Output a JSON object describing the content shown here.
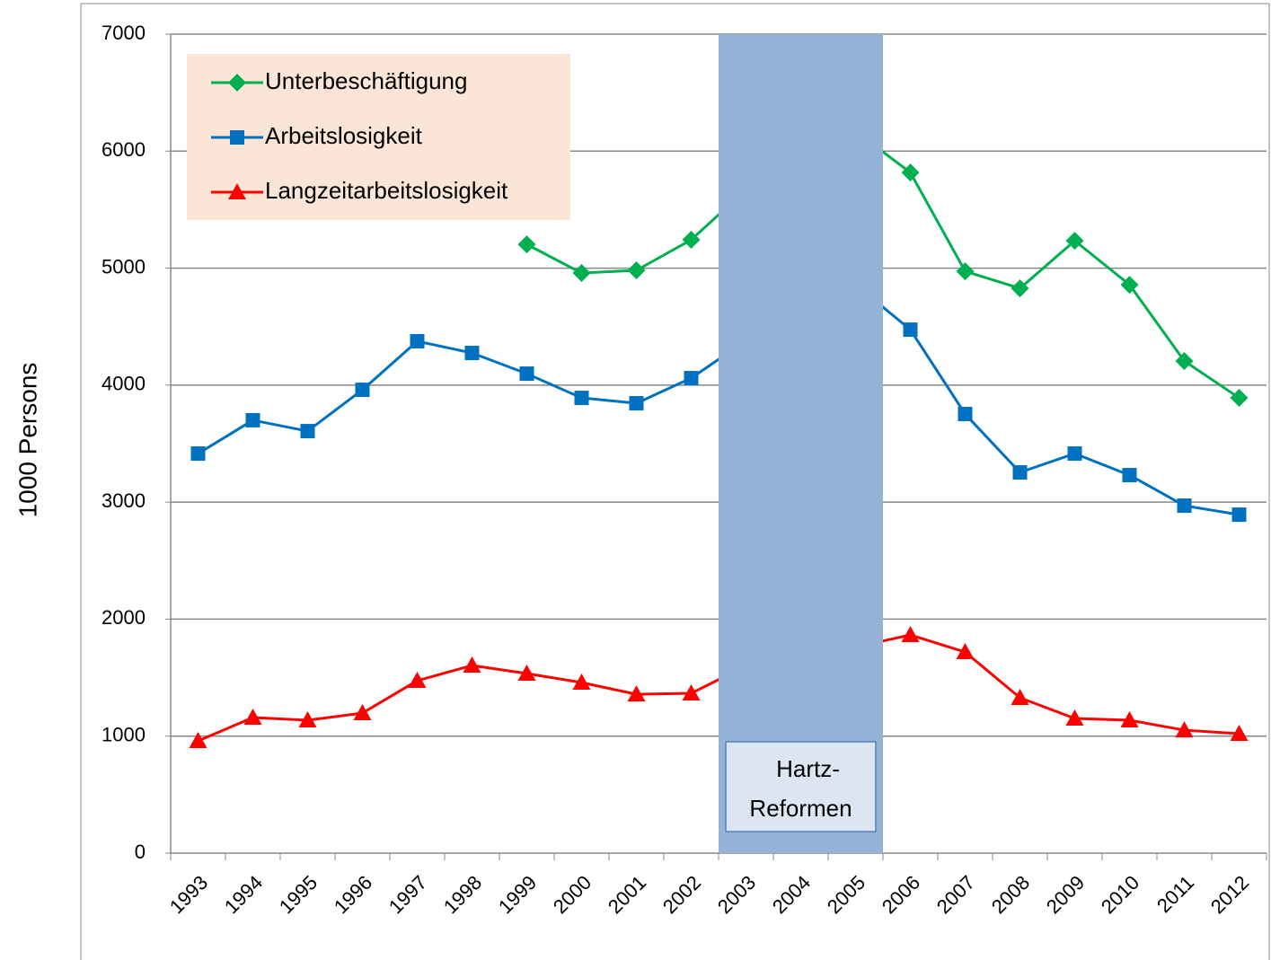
{
  "chart_data": {
    "type": "line",
    "y_label": "1000 Persons",
    "categories": [
      "1993",
      "1994",
      "1995",
      "1996",
      "1997",
      "1998",
      "1999",
      "2000",
      "2001",
      "2002",
      "2003",
      "2004",
      "2005",
      "2006",
      "2007",
      "2008",
      "2009",
      "2010",
      "2011",
      "2012"
    ],
    "series": [
      {
        "name": "Unterbeschäftigung",
        "color": "#00b050",
        "marker": "diamond",
        "values": [
          null,
          null,
          null,
          null,
          null,
          null,
          5203,
          4958,
          4981,
          5242,
          5670,
          5900,
          6170,
          5817,
          4973,
          4827,
          5234,
          4858,
          4206,
          3891
        ]
      },
      {
        "name": "Arbeitslosigkeit",
        "color": "#0070c0",
        "marker": "square",
        "values": [
          3415,
          3700,
          3607,
          3960,
          4375,
          4275,
          4098,
          3891,
          3845,
          4060,
          4380,
          4380,
          4860,
          4474,
          3753,
          3254,
          3415,
          3231,
          2970,
          2893
        ]
      },
      {
        "name": "Langzeitarbeitslosigkeit",
        "color": "#ff0000",
        "marker": "triangle",
        "values": [
          959,
          1159,
          1136,
          1197,
          1474,
          1604,
          1535,
          1458,
          1358,
          1366,
          1600,
          1680,
          1762,
          1865,
          1719,
          1328,
          1151,
          1136,
          1051,
          1021
        ]
      }
    ],
    "ylim": [
      0,
      7000
    ],
    "yticks": [
      0,
      1000,
      2000,
      3000,
      4000,
      5000,
      6000,
      7000
    ],
    "grid": true,
    "legend": "upper-left",
    "highlight": {
      "categories": [
        "2003",
        "2005"
      ],
      "label": [
        "Hartz-",
        "Reformen"
      ],
      "color": "#95b3d7"
    }
  }
}
